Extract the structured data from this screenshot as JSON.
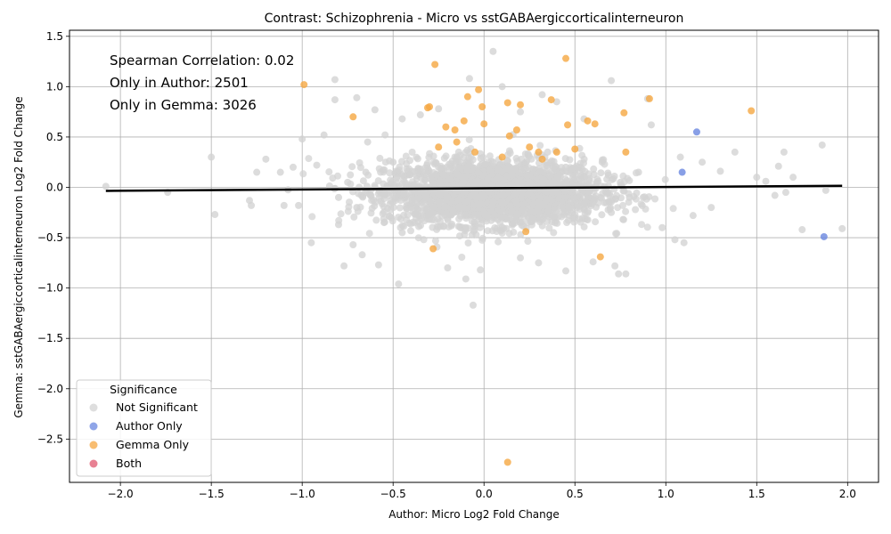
{
  "chart_data": {
    "type": "scatter",
    "title": "Contrast: Schizophrenia - Micro vs sstGABAergiccorticalinterneuron",
    "xlabel": "Author: Micro Log2 Fold Change",
    "ylabel": "Gemma: sstGABAergiccorticalinterneuron Log2 Fold Change",
    "xlim": [
      -2.28,
      2.17
    ],
    "ylim": [
      -2.93,
      1.56
    ],
    "x_ticks": [
      -2.0,
      -1.5,
      -1.0,
      -0.5,
      0.0,
      0.5,
      1.0,
      1.5,
      2.0
    ],
    "x_tick_labels": [
      "−2.0",
      "−1.5",
      "−1.0",
      "−0.5",
      "0.0",
      "0.5",
      "1.0",
      "1.5",
      "2.0"
    ],
    "y_ticks": [
      -2.5,
      -2.0,
      -1.5,
      -1.0,
      -0.5,
      0.0,
      0.5,
      1.0,
      1.5
    ],
    "y_tick_labels": [
      "−2.5",
      "−2.0",
      "−1.5",
      "−1.0",
      "−0.5",
      "0.0",
      "0.5",
      "1.0",
      "1.5"
    ],
    "grid": true,
    "annotations": [
      "Spearman Correlation: 0.02",
      "Only in Author: 2501",
      "Only in Gemma: 3026"
    ],
    "legend": {
      "title": "Significance",
      "placement": "lower-left",
      "entries": [
        "Not Significant",
        "Author Only",
        "Gemma Only",
        "Both"
      ]
    },
    "colors": {
      "Not Significant": "#d3d3d3",
      "Author Only": "#6a87e0",
      "Gemma Only": "#f5a742",
      "Both": "#e0576f",
      "fit_line": "#000000"
    },
    "fit_line": {
      "x": [
        -2.08,
        1.97
      ],
      "y": [
        -0.035,
        0.015
      ]
    },
    "series": [
      {
        "name": "Not Significant",
        "points": [
          [
            -2.08,
            0.01
          ],
          [
            -1.74,
            -0.05
          ],
          [
            -1.5,
            0.3
          ],
          [
            -1.48,
            -0.27
          ],
          [
            -1.29,
            -0.13
          ],
          [
            -1.28,
            -0.18
          ],
          [
            -1.25,
            0.15
          ],
          [
            -1.2,
            0.28
          ],
          [
            -1.12,
            0.15
          ],
          [
            -1.1,
            -0.18
          ],
          [
            -1.05,
            0.2
          ],
          [
            -1.02,
            -0.18
          ],
          [
            -1.0,
            0.48
          ],
          [
            -0.95,
            -0.55
          ],
          [
            -0.92,
            0.22
          ],
          [
            -0.88,
            0.52
          ],
          [
            -0.82,
            0.87
          ],
          [
            -0.82,
            1.07
          ],
          [
            -0.8,
            -0.37
          ],
          [
            -0.77,
            -0.78
          ],
          [
            -0.72,
            -0.57
          ],
          [
            -0.7,
            0.89
          ],
          [
            -0.67,
            -0.67
          ],
          [
            -0.64,
            0.45
          ],
          [
            -0.6,
            0.77
          ],
          [
            -0.58,
            -0.77
          ],
          [
            -0.5,
            -0.07
          ],
          [
            -0.47,
            -0.96
          ],
          [
            -0.45,
            0.68
          ],
          [
            -0.35,
            0.72
          ],
          [
            -0.25,
            0.78
          ],
          [
            -0.2,
            -0.8
          ],
          [
            -0.1,
            -0.91
          ],
          [
            -0.08,
            1.08
          ],
          [
            -0.06,
            -1.17
          ],
          [
            -0.02,
            -0.82
          ],
          [
            0.05,
            1.35
          ],
          [
            0.1,
            1.0
          ],
          [
            0.2,
            0.75
          ],
          [
            0.2,
            -0.7
          ],
          [
            0.3,
            -0.75
          ],
          [
            0.32,
            0.92
          ],
          [
            0.4,
            0.85
          ],
          [
            0.45,
            -0.83
          ],
          [
            0.55,
            0.68
          ],
          [
            0.6,
            -0.74
          ],
          [
            0.7,
            1.06
          ],
          [
            0.72,
            -0.78
          ],
          [
            0.74,
            -0.86
          ],
          [
            0.78,
            -0.86
          ],
          [
            0.9,
            0.88
          ],
          [
            0.92,
            0.62
          ],
          [
            0.98,
            -0.4
          ],
          [
            1.05,
            -0.52
          ],
          [
            1.08,
            0.3
          ],
          [
            1.1,
            -0.55
          ],
          [
            1.15,
            -0.28
          ],
          [
            1.2,
            0.25
          ],
          [
            1.25,
            -0.2
          ],
          [
            1.3,
            0.16
          ],
          [
            1.38,
            0.35
          ],
          [
            1.5,
            0.1
          ],
          [
            1.55,
            0.06
          ],
          [
            1.6,
            -0.08
          ],
          [
            1.62,
            0.21
          ],
          [
            1.65,
            0.35
          ],
          [
            1.66,
            -0.05
          ],
          [
            1.7,
            0.1
          ],
          [
            1.75,
            -0.42
          ],
          [
            1.86,
            0.42
          ],
          [
            1.88,
            -0.03
          ],
          [
            1.97,
            -0.41
          ],
          [
            -0.4,
            -0.2
          ],
          [
            -0.35,
            0.1
          ],
          [
            -0.3,
            -0.3
          ],
          [
            -0.25,
            0.2
          ],
          [
            -0.2,
            -0.1
          ],
          [
            -0.15,
            0.3
          ],
          [
            -0.1,
            -0.4
          ],
          [
            -0.05,
            0.05
          ],
          [
            0.0,
            -0.25
          ],
          [
            0.05,
            0.25
          ],
          [
            0.1,
            -0.15
          ],
          [
            0.15,
            0.15
          ],
          [
            0.2,
            -0.35
          ],
          [
            0.25,
            0.05
          ],
          [
            0.3,
            -0.2
          ],
          [
            0.35,
            0.35
          ],
          [
            0.4,
            -0.05
          ],
          [
            0.45,
            0.2
          ],
          [
            0.5,
            -0.3
          ],
          [
            0.55,
            0.1
          ],
          [
            0.6,
            -0.15
          ],
          [
            0.65,
            0.25
          ],
          [
            0.7,
            -0.25
          ],
          [
            0.75,
            0.05
          ],
          [
            0.8,
            -0.1
          ],
          [
            0.85,
            0.15
          ],
          [
            -0.6,
            0.0
          ],
          [
            -0.55,
            -0.35
          ],
          [
            -0.5,
            0.25
          ],
          [
            -0.45,
            -0.45
          ],
          [
            -0.65,
            0.15
          ],
          [
            -0.7,
            -0.2
          ],
          [
            -0.75,
            0.05
          ],
          [
            -0.8,
            -0.1
          ]
        ]
      },
      {
        "name": "Author Only",
        "points": [
          [
            1.17,
            0.55
          ],
          [
            1.09,
            0.15
          ],
          [
            1.87,
            -0.49
          ]
        ]
      },
      {
        "name": "Gemma Only",
        "points": [
          [
            -0.99,
            1.02
          ],
          [
            -0.72,
            0.7
          ],
          [
            -0.3,
            0.8
          ],
          [
            -0.31,
            0.79
          ],
          [
            -0.27,
            1.22
          ],
          [
            -0.28,
            -0.61
          ],
          [
            -0.21,
            0.6
          ],
          [
            -0.16,
            0.57
          ],
          [
            -0.11,
            0.66
          ],
          [
            -0.09,
            0.9
          ],
          [
            -0.03,
            0.97
          ],
          [
            -0.01,
            0.8
          ],
          [
            0.0,
            0.63
          ],
          [
            0.13,
            0.84
          ],
          [
            0.14,
            0.51
          ],
          [
            0.18,
            0.57
          ],
          [
            0.2,
            0.82
          ],
          [
            0.37,
            0.87
          ],
          [
            0.45,
            1.28
          ],
          [
            0.46,
            0.62
          ],
          [
            0.57,
            0.66
          ],
          [
            0.61,
            0.63
          ],
          [
            0.64,
            -0.69
          ],
          [
            0.77,
            0.74
          ],
          [
            0.78,
            0.35
          ],
          [
            0.91,
            0.88
          ],
          [
            1.47,
            0.76
          ],
          [
            0.13,
            -2.73
          ],
          [
            -0.25,
            0.4
          ],
          [
            -0.15,
            0.45
          ],
          [
            0.25,
            0.4
          ],
          [
            0.3,
            0.35
          ],
          [
            0.4,
            0.35
          ],
          [
            0.23,
            -0.44
          ],
          [
            0.5,
            0.38
          ],
          [
            0.1,
            0.3
          ],
          [
            -0.05,
            0.35
          ],
          [
            0.32,
            0.28
          ]
        ]
      },
      {
        "name": "Both",
        "points": []
      }
    ]
  }
}
